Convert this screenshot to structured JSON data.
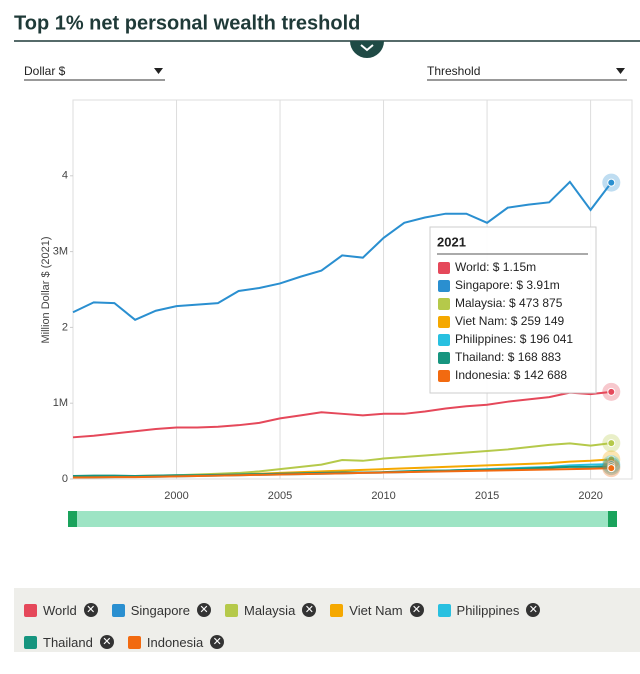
{
  "header": {
    "title": "Top 1% net personal wealth treshold"
  },
  "controls": {
    "unit": "Dollar $",
    "measure": "Threshold"
  },
  "chart_data": {
    "type": "line",
    "y_label": "Million Dollar $ (2021)",
    "x": [
      1995,
      1996,
      1997,
      1998,
      1999,
      2000,
      2001,
      2002,
      2003,
      2004,
      2005,
      2006,
      2007,
      2008,
      2009,
      2010,
      2011,
      2012,
      2013,
      2014,
      2015,
      2016,
      2017,
      2018,
      2019,
      2020,
      2021
    ],
    "xlim": [
      1995,
      2022
    ],
    "xticks": [
      2000,
      2005,
      2010,
      2015,
      2020
    ],
    "ylim": [
      0,
      5
    ],
    "yticks": [
      0,
      {
        "value": 1,
        "label": "1M"
      },
      2,
      {
        "value": 3,
        "label": "3M"
      },
      4
    ],
    "grid": "x",
    "series": [
      {
        "name": "World",
        "color": "#e5485a",
        "values": [
          0.55,
          0.57,
          0.6,
          0.63,
          0.66,
          0.68,
          0.68,
          0.69,
          0.71,
          0.74,
          0.8,
          0.84,
          0.88,
          0.86,
          0.84,
          0.86,
          0.86,
          0.89,
          0.93,
          0.96,
          0.98,
          1.02,
          1.05,
          1.08,
          1.14,
          1.12,
          1.15
        ]
      },
      {
        "name": "Singapore",
        "color": "#2a8fd0",
        "values": [
          2.2,
          2.33,
          2.32,
          2.1,
          2.22,
          2.28,
          2.3,
          2.32,
          2.48,
          2.52,
          2.58,
          2.67,
          2.75,
          2.95,
          2.92,
          3.18,
          3.38,
          3.45,
          3.5,
          3.5,
          3.38,
          3.58,
          3.62,
          3.65,
          3.92,
          3.55,
          3.91
        ]
      },
      {
        "name": "Malaysia",
        "color": "#b5c94a",
        "values": [
          0.03,
          0.035,
          0.04,
          0.04,
          0.045,
          0.05,
          0.06,
          0.07,
          0.08,
          0.1,
          0.13,
          0.16,
          0.19,
          0.25,
          0.24,
          0.27,
          0.29,
          0.31,
          0.33,
          0.35,
          0.37,
          0.39,
          0.42,
          0.45,
          0.47,
          0.44,
          0.473875
        ]
      },
      {
        "name": "Viet Nam",
        "color": "#f5a800",
        "values": [
          0.02,
          0.025,
          0.03,
          0.035,
          0.04,
          0.045,
          0.05,
          0.055,
          0.06,
          0.07,
          0.08,
          0.09,
          0.1,
          0.11,
          0.12,
          0.13,
          0.14,
          0.15,
          0.16,
          0.17,
          0.18,
          0.19,
          0.2,
          0.21,
          0.23,
          0.24,
          0.259149
        ]
      },
      {
        "name": "Philippines",
        "color": "#28c0e0",
        "values": [
          0.02,
          0.022,
          0.025,
          0.027,
          0.03,
          0.035,
          0.04,
          0.045,
          0.05,
          0.055,
          0.06,
          0.065,
          0.07,
          0.075,
          0.08,
          0.085,
          0.09,
          0.1,
          0.11,
          0.12,
          0.13,
          0.14,
          0.15,
          0.16,
          0.18,
          0.19,
          0.196041
        ]
      },
      {
        "name": "Thailand",
        "color": "#16957f",
        "values": [
          0.04,
          0.045,
          0.045,
          0.04,
          0.045,
          0.05,
          0.05,
          0.055,
          0.06,
          0.065,
          0.07,
          0.075,
          0.08,
          0.085,
          0.085,
          0.09,
          0.1,
          0.11,
          0.11,
          0.12,
          0.12,
          0.13,
          0.14,
          0.15,
          0.16,
          0.16,
          0.168883
        ]
      },
      {
        "name": "Indonesia",
        "color": "#f26a10",
        "values": [
          0.02,
          0.022,
          0.025,
          0.025,
          0.03,
          0.035,
          0.04,
          0.045,
          0.05,
          0.055,
          0.06,
          0.065,
          0.07,
          0.075,
          0.08,
          0.085,
          0.09,
          0.095,
          0.1,
          0.105,
          0.11,
          0.115,
          0.12,
          0.125,
          0.13,
          0.135,
          0.142688
        ]
      }
    ],
    "tooltip": {
      "title": "2021",
      "items": [
        "World: $ 1.15m",
        "Singapore: $ 3.91m",
        "Malaysia: $ 473 875",
        "Viet Nam: $ 259 149",
        "Philippines: $ 196 041",
        "Thailand: $ 168 883",
        "Indonesia: $ 142 688"
      ]
    }
  }
}
